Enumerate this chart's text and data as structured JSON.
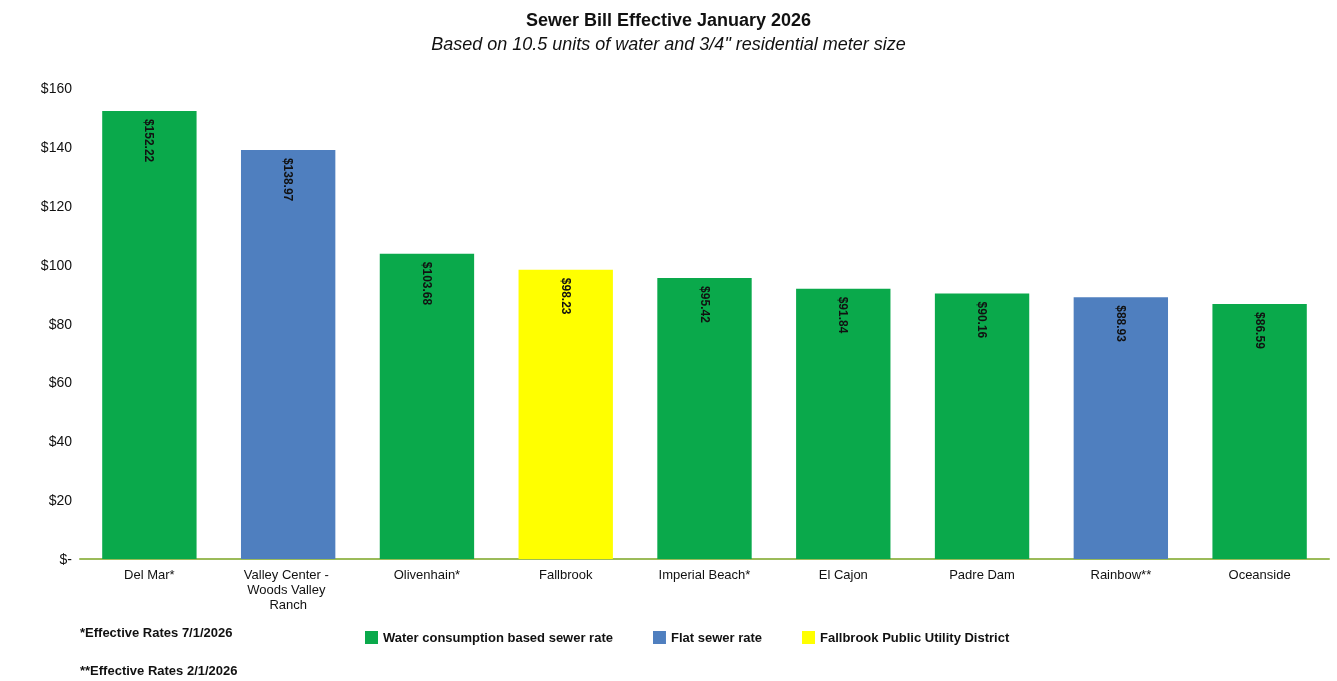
{
  "chart_data": {
    "type": "bar",
    "title": "Sewer Bill Effective January 2026",
    "subtitle": "Based on 10.5 units of water and 3/4\" residential meter size",
    "categories": [
      "Del Mar*",
      "Valley Center - Woods Valley Ranch",
      "Olivenhain*",
      "Fallbrook",
      "Imperial Beach*",
      "El Cajon",
      "Padre Dam",
      "Rainbow**",
      "Oceanside"
    ],
    "stacked": true,
    "series": [
      {
        "name": "Water consumption based sewer rate",
        "color": "#0aa94b",
        "values": [
          152.22,
          null,
          103.68,
          null,
          95.42,
          91.84,
          90.16,
          null,
          86.59
        ],
        "value_labels": [
          "$152.22",
          null,
          "$103.68",
          null,
          "$95.42",
          "$91.84",
          "$90.16",
          null,
          "$86.59"
        ]
      },
      {
        "name": "Flat sewer rate",
        "color": "#4f7fbf",
        "values": [
          null,
          138.97,
          null,
          null,
          null,
          null,
          null,
          88.93,
          null
        ],
        "value_labels": [
          null,
          "$138.97",
          null,
          null,
          null,
          null,
          null,
          "$88.93",
          null
        ]
      },
      {
        "name": "Fallbrook Public Utility District",
        "color": "#ffff00",
        "values": [
          null,
          null,
          null,
          98.23,
          null,
          null,
          null,
          null,
          null
        ],
        "value_labels": [
          null,
          null,
          null,
          "$98.23",
          null,
          null,
          null,
          null,
          null
        ]
      }
    ],
    "ylim": [
      0,
      160
    ],
    "yticks": [
      {
        "value": 0,
        "label": "$-"
      },
      {
        "value": 20,
        "label": "$20"
      },
      {
        "value": 40,
        "label": "$40"
      },
      {
        "value": 60,
        "label": "$60"
      },
      {
        "value": 80,
        "label": "$80"
      },
      {
        "value": 100,
        "label": "$100"
      },
      {
        "value": 120,
        "label": "$120"
      },
      {
        "value": 140,
        "label": "$140"
      },
      {
        "value": 160,
        "label": "$160"
      }
    ],
    "legend": "bottom",
    "annotations": [
      "*Effective Rates 7/1/2026",
      "**Effective Rates 2/1/2026"
    ]
  }
}
